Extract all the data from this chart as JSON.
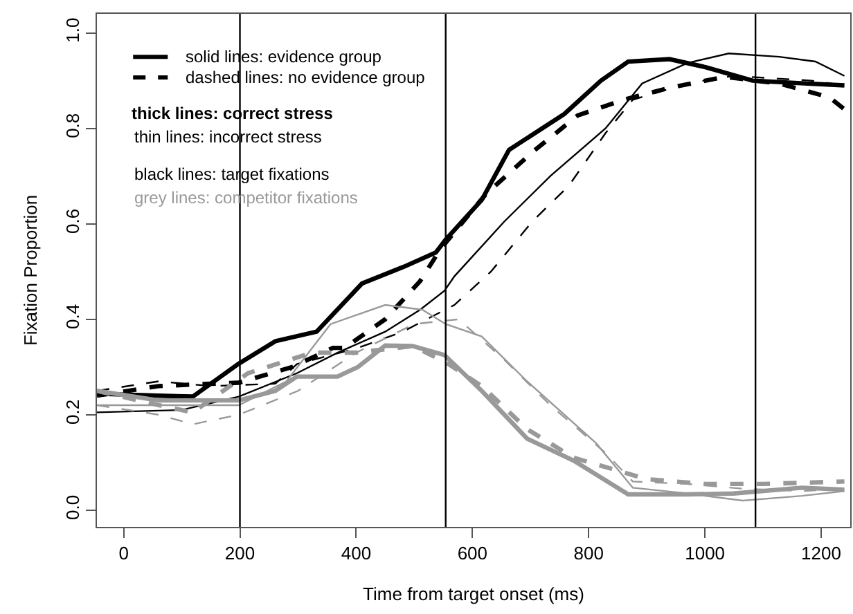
{
  "chart_data": {
    "type": "line",
    "xlabel": "Time from target onset (ms)",
    "ylabel": "Fixation Proportion",
    "xlim": [
      -46,
      1250
    ],
    "xticks": [
      0,
      200,
      400,
      600,
      800,
      1000,
      1200
    ],
    "ylim": [
      -0.035,
      1.04
    ],
    "yticks": [
      {
        "value": 0,
        "label": "0.0"
      },
      {
        "value": 0.2,
        "label": "0.2"
      },
      {
        "value": 0.4,
        "label": "0.4"
      },
      {
        "value": 0.6,
        "label": "0.6"
      },
      {
        "value": 0.8,
        "label": "0.8"
      },
      {
        "value": 1.0,
        "label": "1.0"
      }
    ],
    "marker": "none",
    "ref_lines": [
      {
        "axis": "x",
        "value": 200,
        "color": "#000000"
      },
      {
        "axis": "x",
        "value": 554,
        "color": "#000000"
      },
      {
        "axis": "x",
        "value": 1087,
        "color": "#000000"
      }
    ],
    "annotations": [
      "solid lines: evidence group",
      "dashed lines: no evidence group",
      "thick lines: correct stress",
      "thin lines: incorrect stress",
      "black lines: target fixations",
      "grey lines: competitor fixations"
    ],
    "series": [
      {
        "color": "#000000",
        "line_style": "solid",
        "x": [
          -46,
          60,
          119,
          198,
          261,
          332,
          410,
          482,
          537,
          554,
          616,
          663,
          758,
          821,
          868,
          939,
          1002,
          1082,
          1160,
          1240
        ],
        "values": [
          0.244,
          0.24,
          0.238,
          0.307,
          0.354,
          0.374,
          0.475,
          0.51,
          0.54,
          0.567,
          0.65,
          0.755,
          0.83,
          0.9,
          0.94,
          0.945,
          0.928,
          0.9,
          0.895,
          0.89
        ]
      },
      {
        "color": "#000000",
        "line_style": "dashed",
        "x": [
          -46,
          60,
          150,
          198,
          290,
          360,
          380,
          450,
          510,
          545,
          623,
          703,
          781,
          860,
          939,
          1034,
          1128,
          1214,
          1240
        ],
        "values": [
          0.24,
          0.26,
          0.265,
          0.267,
          0.3,
          0.34,
          0.34,
          0.4,
          0.48,
          0.547,
          0.662,
          0.75,
          0.827,
          0.86,
          0.885,
          0.908,
          0.894,
          0.865,
          0.84
        ]
      },
      {
        "color": "#000000",
        "line_style": "solid",
        "x": [
          -46,
          100,
          198,
          298,
          368,
          450,
          510,
          552,
          569,
          655,
          734,
          829,
          892,
          970,
          1041,
          1128,
          1190,
          1240
        ],
        "values": [
          0.205,
          0.21,
          0.238,
          0.287,
          0.33,
          0.374,
          0.42,
          0.46,
          0.49,
          0.605,
          0.7,
          0.8,
          0.894,
          0.937,
          0.957,
          0.95,
          0.94,
          0.91
        ]
      },
      {
        "color": "#000000",
        "line_style": "dashed",
        "x": [
          -46,
          60,
          150,
          261,
          298,
          403,
          480,
          569,
          632,
          703,
          766,
          829,
          876,
          970,
          1049,
          1183,
          1240
        ],
        "values": [
          0.25,
          0.27,
          0.26,
          0.265,
          0.306,
          0.34,
          0.374,
          0.43,
          0.5,
          0.605,
          0.68,
          0.79,
          0.86,
          0.894,
          0.91,
          0.9,
          0.89
        ]
      },
      {
        "color": "#999999",
        "line_style": "solid",
        "x": [
          -46,
          60,
          198,
          261,
          298,
          368,
          403,
          450,
          497,
          552,
          616,
          694,
          774,
          868,
          970,
          1049,
          1167,
          1240
        ],
        "values": [
          0.25,
          0.23,
          0.23,
          0.25,
          0.28,
          0.28,
          0.3,
          0.345,
          0.344,
          0.325,
          0.25,
          0.15,
          0.104,
          0.033,
          0.033,
          0.035,
          0.047,
          0.043
        ]
      },
      {
        "color": "#999999",
        "line_style": "dashed",
        "x": [
          -46,
          60,
          119,
          214,
          324,
          400,
          497,
          554,
          616,
          694,
          774,
          900,
          1000,
          1100,
          1240
        ],
        "values": [
          0.25,
          0.22,
          0.205,
          0.287,
          0.33,
          0.33,
          0.344,
          0.31,
          0.26,
          0.17,
          0.11,
          0.065,
          0.055,
          0.055,
          0.06
        ]
      },
      {
        "color": "#999999",
        "line_style": "solid",
        "x": [
          -46,
          100,
          198,
          280,
          356,
          450,
          514,
          554,
          616,
          694,
          813,
          876,
          970,
          1065,
          1167,
          1240
        ],
        "values": [
          0.22,
          0.22,
          0.22,
          0.27,
          0.39,
          0.43,
          0.42,
          0.39,
          0.364,
          0.27,
          0.14,
          0.047,
          0.035,
          0.02,
          0.03,
          0.04
        ]
      },
      {
        "color": "#999999",
        "line_style": "dashed",
        "x": [
          -46,
          60,
          119,
          198,
          300,
          400,
          500,
          576,
          655,
          734,
          829,
          876,
          970,
          1065,
          1167,
          1240
        ],
        "values": [
          0.22,
          0.2,
          0.18,
          0.2,
          0.25,
          0.33,
          0.39,
          0.4,
          0.315,
          0.22,
          0.12,
          0.06,
          0.055,
          0.045,
          0.04,
          0.045
        ]
      }
    ]
  }
}
